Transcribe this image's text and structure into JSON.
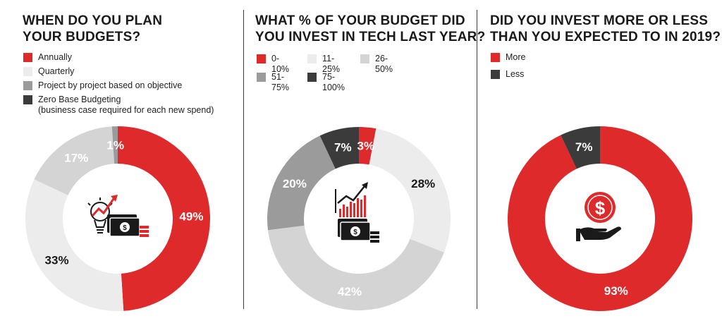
{
  "colors": {
    "red": "#de2a2b",
    "light": "#ececec",
    "lightgray": "#d4d4d4",
    "midgray": "#9b9b9b",
    "dark": "#3b3b3b",
    "white": "#ffffff",
    "text": "#1a1a1a"
  },
  "panels": [
    {
      "title_lines": [
        "WHEN DO YOU PLAN",
        "YOUR BUDGETS?"
      ],
      "legend": [
        {
          "label_lines": [
            "Annually"
          ],
          "color": "#de2a2b"
        },
        {
          "label_lines": [
            "Quarterly"
          ],
          "color": "#ececec"
        },
        {
          "label_lines": [
            "Project by project based on objective"
          ],
          "color": "#9b9b9b"
        },
        {
          "label_lines": [
            "Zero Base Budgeting",
            "(business case required for each new spend)"
          ],
          "color": "#3b3b3b"
        }
      ]
    },
    {
      "title_lines": [
        "WHAT % OF YOUR BUDGET DID",
        "YOU INVEST IN TECH LAST YEAR?"
      ],
      "legend_rows": [
        [
          {
            "label": "0-10%",
            "color": "#de2a2b"
          },
          {
            "label": "11-25%",
            "color": "#ececec"
          },
          {
            "label": "26-50%",
            "color": "#d4d4d4"
          }
        ],
        [
          {
            "label": "51-75%",
            "color": "#9b9b9b"
          },
          {
            "label": "75-100%",
            "color": "#3b3b3b"
          }
        ]
      ]
    },
    {
      "title_lines": [
        "DID YOU INVEST MORE OR LESS",
        "THAN YOU EXPECTED TO IN 2019?"
      ],
      "legend": [
        {
          "label_lines": [
            "More"
          ],
          "color": "#de2a2b"
        },
        {
          "label_lines": [
            "Less"
          ],
          "color": "#3b3b3b"
        }
      ]
    }
  ],
  "icons": [
    "lightbulb-growth-money-icon",
    "bar-chart-money-icon",
    "dollar-coin-hand-icon"
  ],
  "chart_data": [
    {
      "type": "pie",
      "variant": "donut",
      "title": "WHEN DO YOU PLAN YOUR BUDGETS?",
      "categories": [
        "Annually",
        "Quarterly",
        "Project by project based on objective",
        "Zero Base Budgeting (business case required for each new spend)"
      ],
      "values": [
        49,
        33,
        17,
        1
      ],
      "labels": [
        "49%",
        "33%",
        "17%",
        "1%"
      ],
      "colors": [
        "#de2a2b",
        "#ececec",
        "#d4d4d4",
        "#9b9b9b"
      ],
      "label_colors": [
        "#ffffff",
        "#1a1a1a",
        "#ffffff",
        "#ffffff"
      ]
    },
    {
      "type": "pie",
      "variant": "donut",
      "title": "WHAT % OF YOUR BUDGET DID YOU INVEST IN TECH LAST YEAR?",
      "categories": [
        "0-10%",
        "11-25%",
        "26-50%",
        "51-75%",
        "75-100%"
      ],
      "values": [
        3,
        28,
        42,
        20,
        7
      ],
      "labels": [
        "3%",
        "28%",
        "42%",
        "20%",
        "7%"
      ],
      "colors": [
        "#de2a2b",
        "#ececec",
        "#d4d4d4",
        "#9b9b9b",
        "#3b3b3b"
      ],
      "label_colors": [
        "#ffffff",
        "#1a1a1a",
        "#ffffff",
        "#ffffff",
        "#ffffff"
      ]
    },
    {
      "type": "pie",
      "variant": "donut",
      "title": "DID YOU INVEST MORE OR LESS THAN YOU EXPECTED TO IN 2019?",
      "categories": [
        "More",
        "Less"
      ],
      "values": [
        93,
        7
      ],
      "labels": [
        "93%",
        "7%"
      ],
      "colors": [
        "#de2a2b",
        "#3b3b3b"
      ],
      "label_colors": [
        "#ffffff",
        "#ffffff"
      ]
    }
  ]
}
